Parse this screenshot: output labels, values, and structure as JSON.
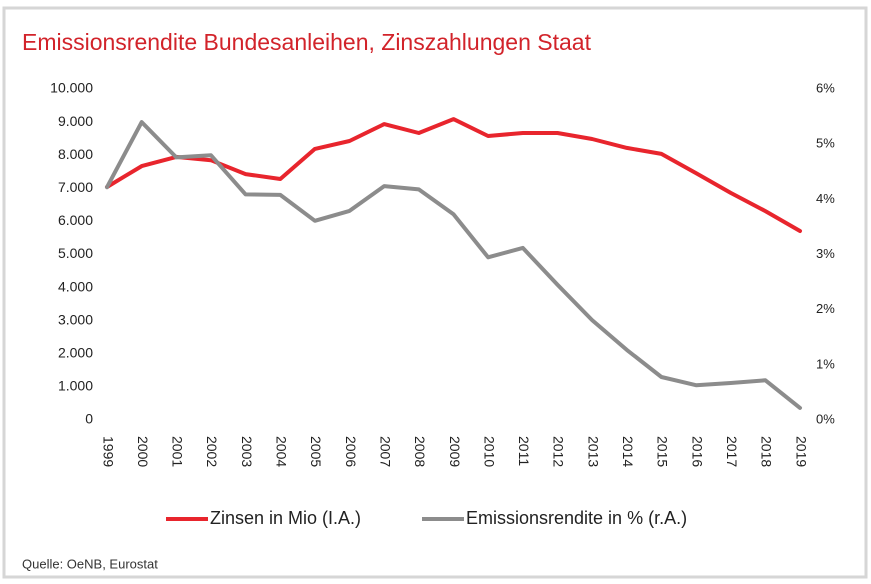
{
  "chart_data": {
    "type": "line",
    "title": "Emissionsrendite Bundesanleihen, Zinszahlungen Staat",
    "source": "Quelle: OeNB, Eurostat",
    "categories": [
      "1999",
      "2000",
      "2001",
      "2002",
      "2003",
      "2004",
      "2005",
      "2006",
      "2007",
      "2008",
      "2009",
      "2010",
      "2011",
      "2012",
      "2013",
      "2014",
      "2015",
      "2016",
      "2017",
      "2018",
      "2019"
    ],
    "series": [
      {
        "name": "Zinsen in Mio (I.A.)",
        "color": "#e8252d",
        "axis": "y",
        "values": [
          7040,
          7670,
          7950,
          7850,
          7430,
          7280,
          8190,
          8430,
          8940,
          8670,
          9090,
          8580,
          8670,
          8670,
          8490,
          8220,
          8040,
          7460,
          6860,
          6310,
          5710
        ]
      },
      {
        "name": "Emissionsrendite in % (r.A.)",
        "color": "#8c8c8c",
        "axis": "y2",
        "values": [
          4.22,
          5.4,
          4.76,
          4.8,
          4.09,
          4.08,
          3.61,
          3.79,
          4.24,
          4.18,
          3.73,
          2.95,
          3.12,
          2.45,
          1.81,
          1.27,
          0.78,
          0.63,
          0.67,
          0.72,
          0.22
        ]
      }
    ],
    "ylim": [
      0,
      10000
    ],
    "yticks": [
      0,
      {
        "value": 1000,
        "label": "1.000"
      },
      {
        "value": 2000,
        "label": "2.000"
      },
      {
        "value": 3000,
        "label": "3.000"
      },
      {
        "value": 4000,
        "label": "4.000"
      },
      {
        "value": 5000,
        "label": "5.000"
      },
      {
        "value": 6000,
        "label": "6.000"
      },
      {
        "value": 7000,
        "label": "7.000"
      },
      {
        "value": 8000,
        "label": "8.000"
      },
      {
        "value": 9000,
        "label": "9.000"
      },
      {
        "value": 10000,
        "label": "10.000"
      }
    ],
    "y2lim": [
      0,
      6
    ],
    "y2ticks": [
      {
        "value": 0,
        "label": "0%"
      },
      {
        "value": 1,
        "label": "1%"
      },
      {
        "value": 2,
        "label": "2%"
      },
      {
        "value": 3,
        "label": "3%"
      },
      {
        "value": 4,
        "label": "4%"
      },
      {
        "value": 5,
        "label": "5%"
      },
      {
        "value": 6,
        "label": "6%"
      }
    ],
    "grid": false,
    "legend": "bottom"
  }
}
